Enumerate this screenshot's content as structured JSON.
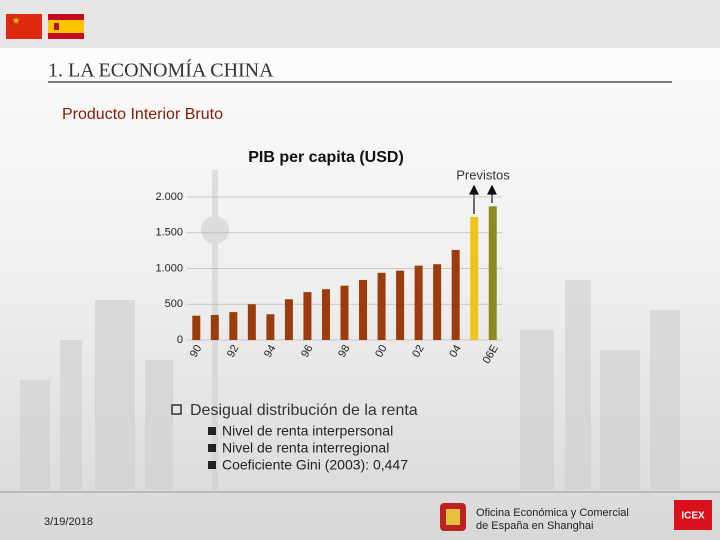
{
  "header": {
    "title": "1. LA ECONOMÍA CHINA",
    "subtitle": "Producto Interior Bruto"
  },
  "chart_data": {
    "type": "bar",
    "title": "PIB per capita (USD)",
    "annotation": "Previstos",
    "categories": [
      "90",
      null,
      "92",
      null,
      "94",
      null,
      "96",
      null,
      "98",
      null,
      "00",
      null,
      "02",
      null,
      "04",
      null,
      "06E"
    ],
    "values": [
      340,
      350,
      390,
      500,
      360,
      570,
      670,
      710,
      760,
      840,
      940,
      970,
      1040,
      1060,
      1260,
      1720,
      1870
    ],
    "colors": [
      "#9c3c0c",
      "#9c3c0c",
      "#9c3c0c",
      "#9c3c0c",
      "#9c3c0c",
      "#9c3c0c",
      "#9c3c0c",
      "#9c3c0c",
      "#9c3c0c",
      "#9c3c0c",
      "#9c3c0c",
      "#9c3c0c",
      "#9c3c0c",
      "#9c3c0c",
      "#9c3c0c",
      "#f0c41c",
      "#8c8c1c"
    ],
    "ylim": [
      0,
      2000
    ],
    "yticks": [
      0,
      500,
      {
        "value": 1000,
        "label": "1.000"
      },
      {
        "value": 1500,
        "label": "1.500"
      },
      {
        "value": 2000,
        "label": "2.000"
      }
    ],
    "grid": true
  },
  "bullets": {
    "main": "Desigual distribución de la renta",
    "items": [
      "Nivel de renta interpersonal",
      "Nivel de renta interregional",
      "Coeficiente Gini (2003):  0,447"
    ]
  },
  "footer": {
    "date": "3/19/2018",
    "office_line1": "Oficina Económica y Comercial",
    "office_line2": "de España en Shanghai",
    "logo": "ICEX"
  }
}
